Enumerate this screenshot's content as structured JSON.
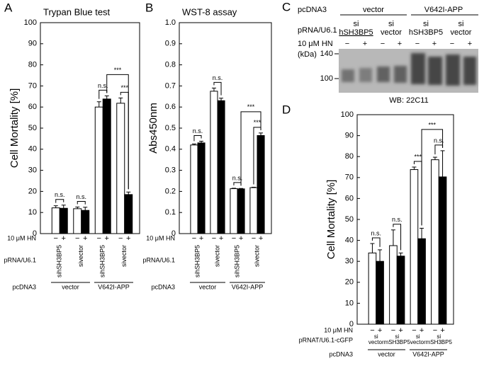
{
  "chart_data": [
    {
      "type": "bar",
      "panel": "A",
      "title": "Trypan Blue test",
      "y_label": "Cell Mortality [%]",
      "ylim": [
        0,
        100
      ],
      "yticks": [
        0,
        10,
        20,
        30,
        40,
        50,
        60,
        70,
        80,
        90,
        100
      ],
      "categories": [
        "sihSH3BP5",
        "sivector",
        "sihSH3BP5",
        "sivector"
      ],
      "series": [
        {
          "name": "−",
          "color": "#ffffff",
          "values": [
            12.2,
            11.8,
            60,
            61.8
          ],
          "errors": [
            1,
            0.8,
            2.5,
            2.5
          ]
        },
        {
          "name": "+",
          "color": "#000000",
          "values": [
            12,
            11,
            63.8,
            18.5
          ],
          "errors": [
            1.5,
            1.5,
            1.5,
            1.2
          ]
        }
      ],
      "hn_label": "10 μM HN",
      "rna_label": "pRNA/U6.1",
      "dna_label": "pcDNA3",
      "dna_groups": [
        "vector",
        "V642I-APP"
      ],
      "brackets": [
        {
          "label": "n.s.",
          "from": [
            0,
            0
          ],
          "to": [
            1,
            0
          ]
        },
        {
          "label": "n.s.",
          "from": [
            0,
            1
          ],
          "to": [
            1,
            1
          ]
        },
        {
          "label": "n.s.",
          "from": [
            0,
            2
          ],
          "to": [
            1,
            2
          ]
        },
        {
          "label": "***",
          "from": [
            0,
            3
          ],
          "to": [
            1,
            3
          ]
        },
        {
          "label": "***",
          "from": [
            1,
            2
          ],
          "to": [
            1,
            3
          ]
        }
      ]
    },
    {
      "type": "bar",
      "panel": "B",
      "title": "WST-8 assay",
      "y_label": "Abs450nm",
      "ylim": [
        0,
        1
      ],
      "yticks": [
        0,
        0.1,
        0.2,
        0.3,
        0.4,
        0.5,
        0.6,
        0.7,
        0.8,
        0.9,
        {
          "value": 1,
          "label": "1.0"
        }
      ],
      "categories": [
        "sihSH3BP5",
        "sivector",
        "sihSH3BP5",
        "sivector"
      ],
      "series": [
        {
          "name": "−",
          "color": "#ffffff",
          "values": [
            0.42,
            0.675,
            0.213,
            0.218
          ],
          "errors": [
            0.005,
            0.015,
            0.002,
            0.002
          ]
        },
        {
          "name": "+",
          "color": "#000000",
          "values": [
            0.43,
            0.63,
            0.212,
            0.465
          ],
          "errors": [
            0.008,
            0.012,
            0.002,
            0.012
          ]
        }
      ],
      "hn_label": "10 μM HN",
      "rna_label": "pRNA/U6.1",
      "dna_label": "pcDNA3",
      "dna_groups": [
        "vector",
        "V642I-APP"
      ],
      "brackets": [
        {
          "label": "n.s.",
          "from": [
            0,
            0
          ],
          "to": [
            1,
            0
          ]
        },
        {
          "label": "n.s.",
          "from": [
            0,
            1
          ],
          "to": [
            1,
            1
          ]
        },
        {
          "label": "n.s.",
          "from": [
            0,
            2
          ],
          "to": [
            1,
            2
          ]
        },
        {
          "label": "***",
          "from": [
            0,
            3
          ],
          "to": [
            1,
            3
          ]
        },
        {
          "label": "***",
          "from": [
            1,
            2
          ],
          "to": [
            1,
            3
          ]
        }
      ]
    },
    {
      "type": "bar",
      "panel": "D",
      "y_label": "Cell Mortality [%]",
      "ylim": [
        0,
        100
      ],
      "yticks": [
        0,
        10,
        20,
        30,
        40,
        50,
        60,
        70,
        80,
        90,
        100
      ],
      "categories": [
        [
          "si",
          "vector"
        ],
        [
          "si",
          "mSH3BP5"
        ],
        [
          "si",
          "vector"
        ],
        [
          "si",
          "mSH3BP5"
        ]
      ],
      "series": [
        {
          "name": "−",
          "color": "#ffffff",
          "values": [
            34,
            37.5,
            73.8,
            78.5
          ],
          "errors": [
            4.5,
            7.5,
            1.2,
            1.2
          ]
        },
        {
          "name": "+",
          "color": "#000000",
          "values": [
            30,
            32.5,
            40.8,
            70.3
          ],
          "errors": [
            5.5,
            1.5,
            5,
            12.5
          ]
        }
      ],
      "hn_label": "10 μM HN",
      "rna_label": "pRNAT/U6.1-cGFP",
      "dna_label": "pcDNA3",
      "dna_groups": [
        "vector",
        "V642I-APP"
      ],
      "brackets": [
        {
          "label": "n.s.",
          "from": [
            0,
            0
          ],
          "to": [
            1,
            0
          ]
        },
        {
          "label": "n.s.",
          "from": [
            0,
            1
          ],
          "to": [
            1,
            1
          ]
        },
        {
          "label": "***",
          "from": [
            0,
            2
          ],
          "to": [
            1,
            2
          ]
        },
        {
          "label": "n.s.",
          "from": [
            0,
            3
          ],
          "to": [
            1,
            3
          ]
        },
        {
          "label": "***",
          "from": [
            1,
            2
          ],
          "to": [
            1,
            3
          ]
        }
      ]
    }
  ],
  "blot": {
    "panel": "C",
    "construct_label": "pcDNA3",
    "constructs": [
      "vector",
      "V642I-APP"
    ],
    "rna_label": "pRNA/U6.1",
    "rna_lanes": [
      [
        "si",
        "hSH3BP5"
      ],
      [
        "si",
        "vector"
      ],
      [
        "si",
        "hSH3BP5"
      ],
      [
        "si",
        "vector"
      ]
    ],
    "hn_label": "10 μM HN",
    "hn": [
      "−",
      "+"
    ],
    "kda_label": "(kDa)",
    "markers": [
      140,
      100
    ],
    "caption": "WB: 22C11"
  }
}
